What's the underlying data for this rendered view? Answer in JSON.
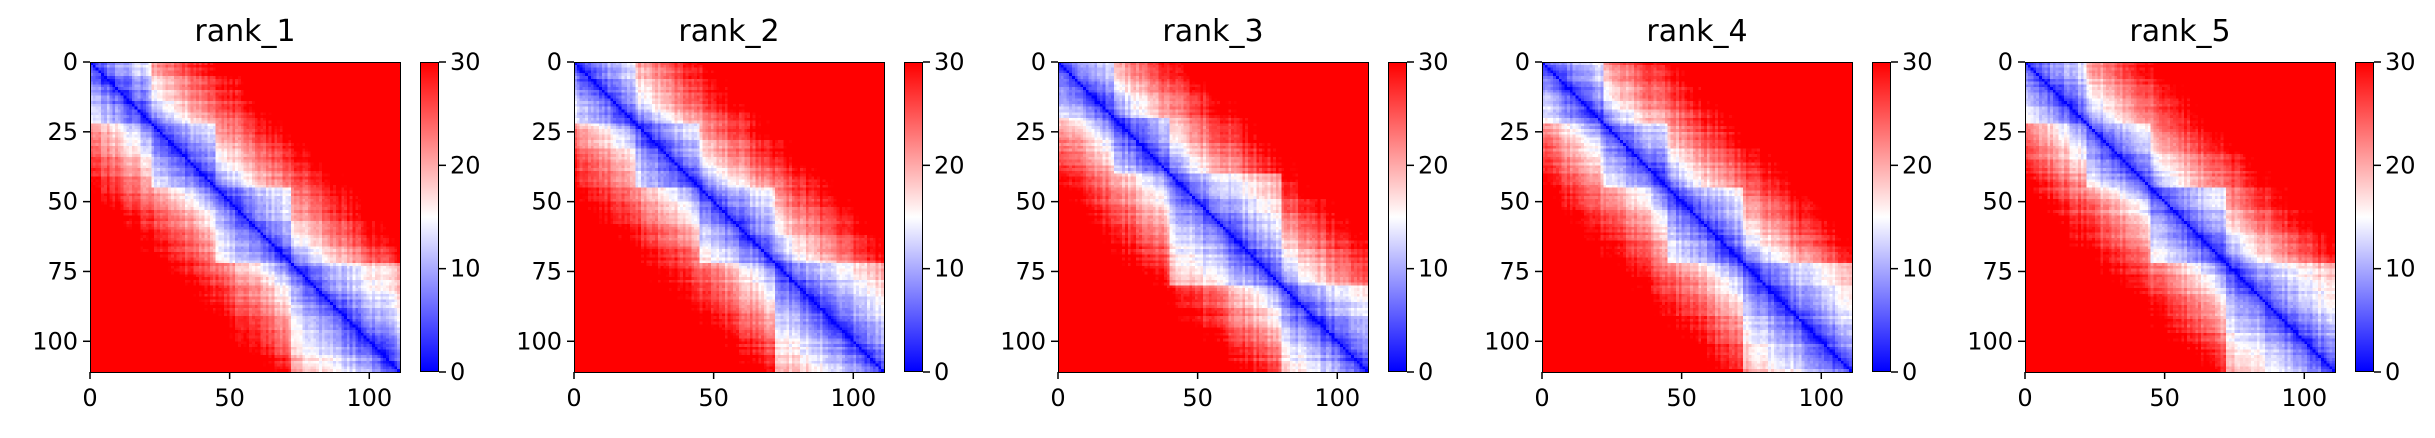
{
  "colors": {
    "low": "#0000ff",
    "mid": "#ffffff",
    "high": "#ff0000"
  },
  "chart_data": [
    {
      "type": "heatmap",
      "title": "rank_1",
      "size": 111,
      "xlim": [
        0,
        111
      ],
      "ylim": [
        111,
        0
      ],
      "xticks": [
        0,
        50,
        100
      ],
      "yticks": [
        0,
        25,
        50,
        75,
        100
      ],
      "colorbar": {
        "range": [
          0,
          30
        ],
        "ticks": [
          0,
          10,
          20,
          30
        ],
        "colormap": "bwr"
      },
      "domains": [
        [
          0,
          22
        ],
        [
          22,
          45
        ],
        [
          45,
          72
        ],
        [
          72,
          111
        ]
      ]
    },
    {
      "type": "heatmap",
      "title": "rank_2",
      "size": 111,
      "xlim": [
        0,
        111
      ],
      "ylim": [
        111,
        0
      ],
      "xticks": [
        0,
        50,
        100
      ],
      "yticks": [
        0,
        25,
        50,
        75,
        100
      ],
      "colorbar": {
        "range": [
          0,
          30
        ],
        "ticks": [
          0,
          10,
          20,
          30
        ],
        "colormap": "bwr"
      },
      "domains": [
        [
          0,
          22
        ],
        [
          22,
          45
        ],
        [
          45,
          72
        ],
        [
          72,
          111
        ]
      ]
    },
    {
      "type": "heatmap",
      "title": "rank_3",
      "size": 111,
      "xlim": [
        0,
        111
      ],
      "ylim": [
        111,
        0
      ],
      "xticks": [
        0,
        50,
        100
      ],
      "yticks": [
        0,
        25,
        50,
        75,
        100
      ],
      "colorbar": {
        "range": [
          0,
          30
        ],
        "ticks": [
          0,
          10,
          20,
          30
        ],
        "colormap": "bwr"
      },
      "domains": [
        [
          0,
          20
        ],
        [
          20,
          40
        ],
        [
          40,
          80
        ],
        [
          80,
          111
        ]
      ]
    },
    {
      "type": "heatmap",
      "title": "rank_4",
      "size": 111,
      "xlim": [
        0,
        111
      ],
      "ylim": [
        111,
        0
      ],
      "xticks": [
        0,
        50,
        100
      ],
      "yticks": [
        0,
        25,
        50,
        75,
        100
      ],
      "colorbar": {
        "range": [
          0,
          30
        ],
        "ticks": [
          0,
          10,
          20,
          30
        ],
        "colormap": "bwr"
      },
      "domains": [
        [
          0,
          22
        ],
        [
          22,
          45
        ],
        [
          45,
          72
        ],
        [
          72,
          111
        ]
      ]
    },
    {
      "type": "heatmap",
      "title": "rank_5",
      "size": 111,
      "xlim": [
        0,
        111
      ],
      "ylim": [
        111,
        0
      ],
      "xticks": [
        0,
        50,
        100
      ],
      "yticks": [
        0,
        25,
        50,
        75,
        100
      ],
      "colorbar": {
        "range": [
          0,
          30
        ],
        "ticks": [
          0,
          10,
          20,
          30
        ],
        "colormap": "bwr"
      },
      "domains": [
        [
          0,
          22
        ],
        [
          22,
          45
        ],
        [
          45,
          72
        ],
        [
          72,
          111
        ]
      ]
    }
  ]
}
